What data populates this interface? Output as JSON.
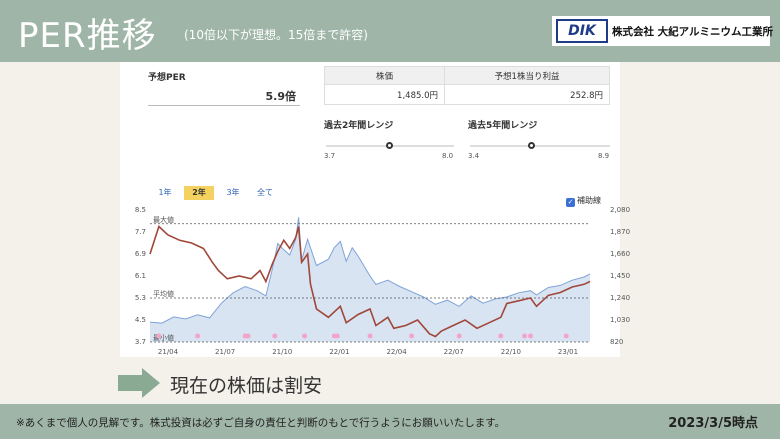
{
  "header": {
    "title": "PER推移",
    "subtitle": "(10倍以下が理想。15倍まで許容)",
    "brand_logo": "DIK",
    "brand_name": "株式会社 大紀アルミニウム工業所"
  },
  "per": {
    "label": "予想PER",
    "value": "5.9倍"
  },
  "info_table": {
    "headers": [
      "株価",
      "予想1株当り利益"
    ],
    "values": [
      "1,485.0円",
      "252.8円"
    ]
  },
  "range_2y": {
    "label": "過去2年間レンジ",
    "min": "3.7",
    "max": "8.0"
  },
  "range_5y": {
    "label": "過去5年間レンジ",
    "min": "3.4",
    "max": "8.9"
  },
  "tabs": [
    {
      "label": "1年",
      "active": false
    },
    {
      "label": "2年",
      "active": true
    },
    {
      "label": "3年",
      "active": false
    },
    {
      "label": "全て",
      "active": false
    }
  ],
  "aux_line": {
    "label": "補助線",
    "checked": true
  },
  "chart_data": {
    "type": "line",
    "title": "",
    "x_ticks": [
      "21/04",
      "21/07",
      "21/10",
      "22/01",
      "22/04",
      "22/07",
      "22/10",
      "23/01"
    ],
    "y_left_ticks": [
      "8.5",
      "7.7",
      "6.9",
      "6.1",
      "5.3",
      "4.5",
      "3.7"
    ],
    "y_left_range": [
      3.7,
      8.5
    ],
    "y_right_ticks": [
      "2,080",
      "1,870",
      "1,660",
      "1,450",
      "1,240",
      "1,030",
      "820"
    ],
    "y_right_range": [
      820,
      2080
    ],
    "reference_lines": [
      {
        "label": "最大値",
        "value": 8.0
      },
      {
        "label": "平均値",
        "value": 5.3
      },
      {
        "label": "最小値",
        "value": 3.7
      }
    ],
    "series": [
      {
        "axis": "left",
        "color": "#a0473a",
        "points": [
          [
            0,
            6.9
          ],
          [
            1.5,
            7.9
          ],
          [
            3,
            7.6
          ],
          [
            5,
            7.4
          ],
          [
            7,
            7.3
          ],
          [
            9,
            7.1
          ],
          [
            10.5,
            6.6
          ],
          [
            11.5,
            6.3
          ],
          [
            13,
            6.0
          ],
          [
            15,
            6.1
          ],
          [
            17,
            6.0
          ],
          [
            18.5,
            6.3
          ],
          [
            19.5,
            5.9
          ],
          [
            20.5,
            6.5
          ],
          [
            21.5,
            7.0
          ],
          [
            22.5,
            7.4
          ],
          [
            23.5,
            7.1
          ],
          [
            24.5,
            7.5
          ],
          [
            25,
            7.9
          ],
          [
            25.5,
            6.6
          ],
          [
            26.5,
            6.9
          ],
          [
            27,
            5.8
          ],
          [
            28,
            4.9
          ],
          [
            30,
            4.6
          ],
          [
            32,
            5.0
          ],
          [
            33,
            4.4
          ],
          [
            35,
            4.7
          ],
          [
            37,
            4.9
          ],
          [
            38,
            4.3
          ],
          [
            40,
            4.6
          ],
          [
            41,
            4.2
          ],
          [
            43,
            4.3
          ],
          [
            45,
            4.5
          ],
          [
            47,
            4.0
          ],
          [
            48,
            3.9
          ],
          [
            49,
            4.1
          ],
          [
            51,
            4.3
          ],
          [
            53,
            4.5
          ],
          [
            55,
            4.2
          ],
          [
            57,
            4.4
          ],
          [
            59,
            4.6
          ],
          [
            60,
            5.1
          ],
          [
            62,
            5.2
          ],
          [
            64,
            5.3
          ],
          [
            65,
            5.0
          ],
          [
            67,
            5.4
          ],
          [
            69,
            5.5
          ],
          [
            71,
            5.7
          ],
          [
            73,
            5.8
          ],
          [
            74,
            5.9
          ]
        ]
      },
      {
        "axis": "right",
        "color": "#7ea3d8",
        "points": [
          [
            0,
            1010
          ],
          [
            2,
            1000
          ],
          [
            4,
            1060
          ],
          [
            6,
            1040
          ],
          [
            8,
            1080
          ],
          [
            10,
            1050
          ],
          [
            12,
            1190
          ],
          [
            14,
            1290
          ],
          [
            16,
            1350
          ],
          [
            18,
            1310
          ],
          [
            19.5,
            1260
          ],
          [
            20.5,
            1500
          ],
          [
            21.5,
            1760
          ],
          [
            22.5,
            1700
          ],
          [
            23.5,
            1650
          ],
          [
            24.5,
            1800
          ],
          [
            25,
            2010
          ],
          [
            25.5,
            1600
          ],
          [
            26.5,
            1800
          ],
          [
            28,
            1550
          ],
          [
            30,
            1610
          ],
          [
            31,
            1720
          ],
          [
            32,
            1780
          ],
          [
            33,
            1590
          ],
          [
            34,
            1720
          ],
          [
            35,
            1640
          ],
          [
            37,
            1450
          ],
          [
            38,
            1370
          ],
          [
            40,
            1410
          ],
          [
            42,
            1350
          ],
          [
            44,
            1300
          ],
          [
            46,
            1250
          ],
          [
            48,
            1180
          ],
          [
            50,
            1220
          ],
          [
            52,
            1160
          ],
          [
            54,
            1260
          ],
          [
            56,
            1190
          ],
          [
            58,
            1230
          ],
          [
            60,
            1250
          ],
          [
            62,
            1290
          ],
          [
            64,
            1310
          ],
          [
            65,
            1270
          ],
          [
            67,
            1340
          ],
          [
            69,
            1360
          ],
          [
            71,
            1410
          ],
          [
            73,
            1440
          ],
          [
            74,
            1470
          ]
        ]
      }
    ],
    "markers": [
      1.5,
      8,
      16,
      16.5,
      21,
      26,
      31,
      31.5,
      37,
      44,
      52,
      59,
      63,
      64,
      70
    ]
  },
  "verdict": "現在の株価は割安",
  "footer": {
    "disclaimer": "※あくまで個人の見解です。株式投資は必ずご自身の責任と判断のもとで行うようにお願いいたします。",
    "as_of": "2023/3/5時点"
  },
  "colors": {
    "header_bg": "#9fb5a8",
    "page_bg": "#f4f1ea",
    "arrow": "#8aaa94",
    "tab_active": "#f5d25f"
  }
}
